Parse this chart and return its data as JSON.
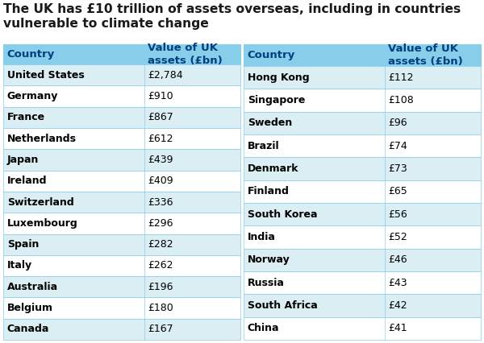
{
  "title_line1": "The UK has £10 trillion of assets overseas, including in countries",
  "title_line2": "vulnerable to climate change",
  "title_color": "#1a1a1a",
  "title_fontsize": 11.2,
  "header_bg": "#87CEEB",
  "header_color": "#004080",
  "row_bg_even": "#ffffff",
  "row_bg_odd": "#daeef3",
  "border_color": "#87CEEB",
  "text_color": "#000000",
  "left_table": {
    "headers": [
      "Country",
      "Value of UK\nassets (£bn)"
    ],
    "rows": [
      [
        "United States",
        "£2,784"
      ],
      [
        "Germany",
        "£910"
      ],
      [
        "France",
        "£867"
      ],
      [
        "Netherlands",
        "£612"
      ],
      [
        "Japan",
        "£439"
      ],
      [
        "Ireland",
        "£409"
      ],
      [
        "Switzerland",
        "£336"
      ],
      [
        "Luxembourg",
        "£296"
      ],
      [
        "Spain",
        "£282"
      ],
      [
        "Italy",
        "£262"
      ],
      [
        "Australia",
        "£196"
      ],
      [
        "Belgium",
        "£180"
      ],
      [
        "Canada",
        "£167"
      ]
    ]
  },
  "right_table": {
    "headers": [
      "Country",
      "Value of UK\nassets (£bn)"
    ],
    "rows": [
      [
        "Hong Kong",
        "£112"
      ],
      [
        "Singapore",
        "£108"
      ],
      [
        "Sweden",
        "£96"
      ],
      [
        "Brazil",
        "£74"
      ],
      [
        "Denmark",
        "£73"
      ],
      [
        "Finland",
        "£65"
      ],
      [
        "South Korea",
        "£56"
      ],
      [
        "India",
        "£52"
      ],
      [
        "Norway",
        "£46"
      ],
      [
        "Russia",
        "£43"
      ],
      [
        "South Africa",
        "£42"
      ],
      [
        "China",
        "£41"
      ]
    ]
  },
  "figsize": [
    6.0,
    4.26
  ],
  "dpi": 100
}
